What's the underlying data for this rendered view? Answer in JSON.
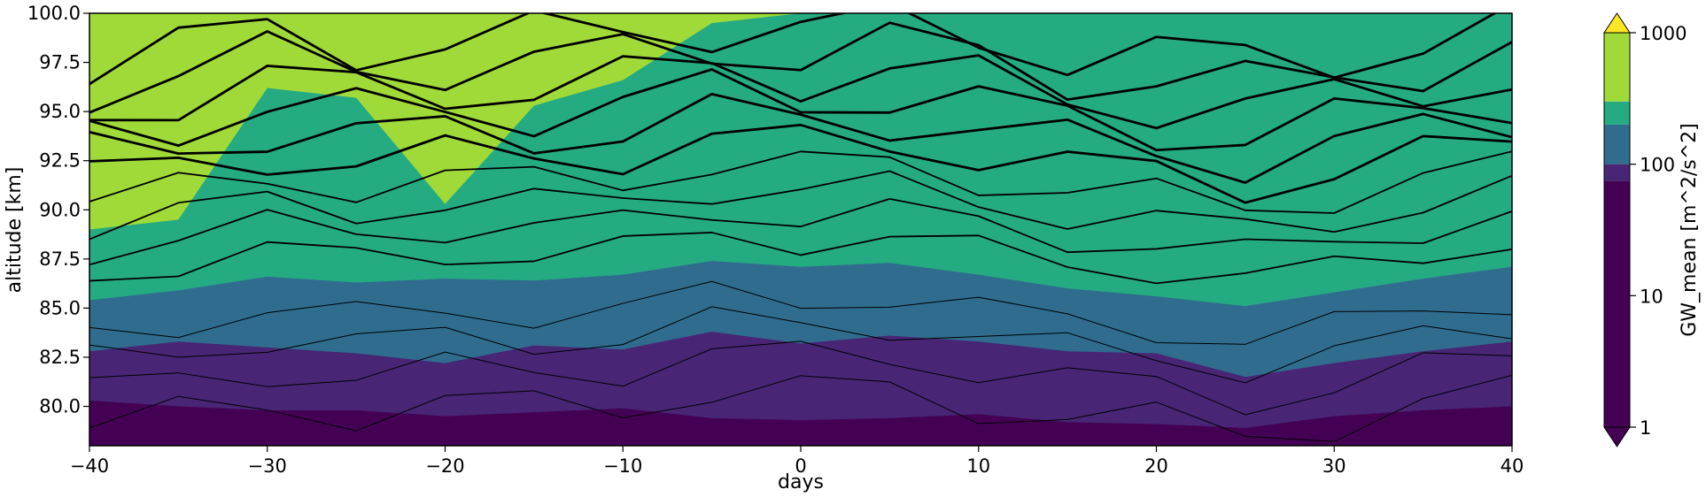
{
  "chart_data": {
    "type": "heatmap",
    "subtype": "filled contour plot with overlaid contour lines",
    "xlabel": "days",
    "ylabel": "altitude [km]",
    "xlim": [
      -40,
      40
    ],
    "ylim": [
      78,
      100
    ],
    "x_ticks": [
      -40,
      -30,
      -20,
      -10,
      0,
      10,
      20,
      30,
      40
    ],
    "x_tick_labels": [
      "−40",
      "−30",
      "−20",
      "−10",
      "0",
      "10",
      "20",
      "30",
      "40"
    ],
    "y_ticks": [
      80.0,
      82.5,
      85.0,
      87.5,
      90.0,
      92.5,
      95.0,
      97.5,
      100.0
    ],
    "y_tick_labels": [
      "80.0",
      "82.5",
      "85.0",
      "87.5",
      "90.0",
      "92.5",
      "95.0",
      "97.5",
      "100.0"
    ],
    "grid": false,
    "colorbar": {
      "label": "GW_mean [m^2/s^2]",
      "scale": "log",
      "extend": "both",
      "tick_values": [
        1,
        10,
        100,
        1000
      ],
      "tick_labels": [
        "1",
        "10",
        "100",
        "1000"
      ],
      "levels": [
        1,
        75,
        100,
        200,
        300,
        1000
      ],
      "colors": [
        "#440154",
        "#482575",
        "#2f6c8e",
        "#25ab82",
        "#a0da39",
        "#fde725"
      ]
    },
    "bands_by_day": {
      "x": [
        -40,
        -35,
        -30,
        -25,
        -20,
        -15,
        -10,
        -5,
        0,
        5,
        10,
        15,
        20,
        25,
        30,
        35,
        40
      ],
      "band_tops_km": [
        {
          "level": 75,
          "altitude": [
            80.3,
            80.0,
            79.8,
            79.8,
            79.5,
            79.7,
            79.9,
            79.4,
            79.3,
            79.4,
            79.6,
            79.2,
            79.1,
            78.9,
            79.5,
            79.8,
            80.0
          ]
        },
        {
          "level": 100,
          "altitude": [
            82.8,
            83.3,
            83.0,
            82.7,
            82.2,
            83.1,
            82.9,
            83.8,
            83.2,
            83.6,
            83.3,
            82.8,
            82.7,
            81.5,
            82.2,
            82.8,
            83.3
          ]
        },
        {
          "level": 200,
          "altitude": [
            85.4,
            85.9,
            86.6,
            86.3,
            86.5,
            86.4,
            86.7,
            87.4,
            87.1,
            87.3,
            86.7,
            86.0,
            85.6,
            85.1,
            85.8,
            86.5,
            87.1
          ]
        },
        {
          "level": 300,
          "altitude": [
            89.0,
            89.5,
            96.2,
            95.7,
            90.3,
            95.3,
            96.6,
            99.5,
            100.0,
            100.0,
            100.0,
            100.0,
            100.0,
            100.0,
            100.0,
            100.0,
            100.0
          ]
        },
        {
          "level": 1000,
          "altitude": [
            100.0,
            100.0,
            100.0,
            100.0,
            100.0,
            100.0,
            100.0,
            100.0,
            100.0,
            100.0,
            99.6,
            99.2,
            99.1,
            99.2,
            99.3,
            99.6,
            100.0
          ]
        }
      ]
    },
    "line_contours": {
      "color": "#000000",
      "note": "thin lines low, thick lines in the upper layer",
      "altitude_offsets_km": [
        -6.5,
        -4.7,
        -3.1,
        -1.7,
        1.3,
        2.6,
        3.8,
        5.0,
        6.2,
        7.4,
        8.6,
        9.8,
        11.0,
        12.2
      ]
    }
  }
}
